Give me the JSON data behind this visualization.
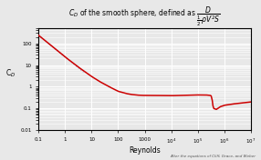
{
  "title_part1": "C",
  "title_sub": "D",
  "title_part2": " of the smooth sphere, defined as ",
  "title_frac_num": "D",
  "title_frac_den": "½pV²S",
  "xlabel": "Reynolds",
  "ylabel": "C",
  "ylabel_sub": "D",
  "footnote": "After the equations of Cliff, Grace, and Weber",
  "xlim": [
    0.1,
    10000000.0
  ],
  "ylim": [
    0.01,
    500
  ],
  "bg_color": "#e8e8e8",
  "grid_color": "#ffffff",
  "line_color_main": "#cc0000",
  "line_color_stokes": "#9999cc",
  "xtick_labels": [
    "0.1",
    "1",
    "10",
    "100",
    "1000",
    "10$^4$",
    "10$^5$",
    "10$^6$",
    "10$^7$"
  ],
  "xtick_vals": [
    0.1,
    1,
    10,
    100,
    1000,
    10000,
    100000,
    1000000,
    10000000
  ],
  "ytick_labels": [
    "100",
    "10",
    "1",
    "0.1",
    "0.01"
  ],
  "ytick_vals": [
    100,
    10,
    1,
    0.1,
    0.01
  ]
}
